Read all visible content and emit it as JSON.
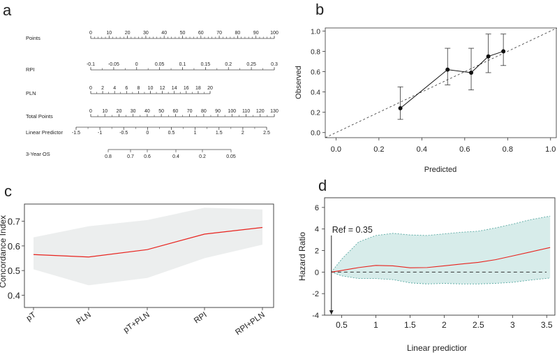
{
  "panels": {
    "a": "a",
    "b": "b",
    "c": "c",
    "d": "d"
  },
  "chart_data": [
    {
      "type": "nomogram",
      "panel": "a",
      "rows": [
        {
          "name": "Points",
          "min": 0,
          "max": 100,
          "ticks": [
            0,
            10,
            20,
            30,
            40,
            50,
            60,
            70,
            80,
            90,
            100
          ]
        },
        {
          "name": "RPI",
          "min": -0.1,
          "max": 0.3,
          "ticks": [
            -0.1,
            -0.05,
            0,
            0.05,
            0.1,
            0.15,
            0.2,
            0.25,
            0.3
          ]
        },
        {
          "name": "PLN",
          "min": 0,
          "max": 20,
          "ticks": [
            0,
            2,
            4,
            6,
            8,
            10,
            12,
            14,
            16,
            18,
            20
          ]
        },
        {
          "name": "Total Points",
          "min": 0,
          "max": 130,
          "ticks": [
            0,
            10,
            20,
            30,
            40,
            50,
            60,
            70,
            80,
            90,
            100,
            110,
            120,
            130
          ]
        },
        {
          "name": "Linear Predictor",
          "min": -1.5,
          "max": 2.5,
          "ticks": [
            -1.5,
            -1,
            -0.5,
            0,
            0.5,
            1,
            1.5,
            2,
            2.5
          ]
        },
        {
          "name": "3-Year OS",
          "ticks": [
            0.8,
            0.7,
            0.6,
            0.4,
            0.2,
            0.05
          ]
        }
      ]
    },
    {
      "type": "calibration",
      "panel": "b",
      "xlabel": "Predicted",
      "ylabel": "Observed",
      "xlim": [
        -0.05,
        1.03
      ],
      "ylim": [
        -0.05,
        1.03
      ],
      "xticks": [
        0.0,
        0.2,
        0.4,
        0.6,
        0.8,
        1.0
      ],
      "yticks": [
        0.0,
        0.2,
        0.4,
        0.6,
        0.8,
        1.0
      ],
      "points": [
        {
          "x": 0.3,
          "y": 0.24,
          "lo": 0.13,
          "hi": 0.45
        },
        {
          "x": 0.52,
          "y": 0.62,
          "lo": 0.47,
          "hi": 0.83
        },
        {
          "x": 0.63,
          "y": 0.59,
          "lo": 0.42,
          "hi": 0.83
        },
        {
          "x": 0.71,
          "y": 0.75,
          "lo": 0.59,
          "hi": 0.97
        },
        {
          "x": 0.78,
          "y": 0.8,
          "lo": 0.66,
          "hi": 0.97
        }
      ],
      "apparent_line": [
        [
          0.52,
          0.62
        ],
        [
          0.63,
          0.59
        ],
        [
          0.71,
          0.75
        ],
        [
          0.78,
          0.8
        ]
      ],
      "reference": "diagonal"
    },
    {
      "type": "line",
      "panel": "c",
      "ylabel": "Concordance Index",
      "categories": [
        "pT",
        "PLN",
        "pT+PLN",
        "RPI",
        "RPI+PLN"
      ],
      "values": [
        0.565,
        0.555,
        0.585,
        0.648,
        0.675
      ],
      "lower": [
        0.505,
        0.44,
        0.47,
        0.55,
        0.605
      ],
      "upper": [
        0.635,
        0.68,
        0.705,
        0.755,
        0.748
      ],
      "ylim": [
        0.35,
        0.77
      ],
      "yticks": [
        0.4,
        0.5,
        0.6,
        0.7
      ],
      "line_color": "#e8231e",
      "band_color": "#eceeee"
    },
    {
      "type": "line",
      "panel": "d",
      "xlabel": "Linear predictior",
      "ylabel": "Hazard Ratio",
      "xlim": [
        0.25,
        3.62
      ],
      "ylim": [
        -4,
        6.9
      ],
      "xticks": [
        0.5,
        1,
        1.5,
        2,
        2.5,
        3,
        3.5
      ],
      "yticks": [
        -4,
        -2,
        0,
        2,
        4,
        6
      ],
      "ref_label": "Ref = 0.35",
      "ref_x": 0.35,
      "x": [
        0.35,
        0.5,
        0.75,
        1.0,
        1.25,
        1.5,
        1.75,
        2.0,
        2.25,
        2.5,
        2.75,
        3.0,
        3.25,
        3.55
      ],
      "hr": [
        0.0,
        0.15,
        0.42,
        0.62,
        0.58,
        0.4,
        0.42,
        0.58,
        0.75,
        0.9,
        1.15,
        1.5,
        1.85,
        2.28
      ],
      "upper": [
        0.0,
        1.2,
        2.8,
        3.4,
        3.6,
        3.45,
        3.4,
        3.55,
        3.7,
        3.8,
        4.1,
        4.45,
        4.85,
        5.2
      ],
      "lower": [
        0.0,
        -0.35,
        -0.6,
        -0.6,
        -0.7,
        -1.0,
        -1.1,
        -1.05,
        -1.1,
        -1.1,
        -1.05,
        -0.95,
        -0.75,
        -0.55
      ],
      "line_color": "#e8231e",
      "band_color": "#d7ecea",
      "band_edge_color": "#5aa9a3"
    }
  ]
}
